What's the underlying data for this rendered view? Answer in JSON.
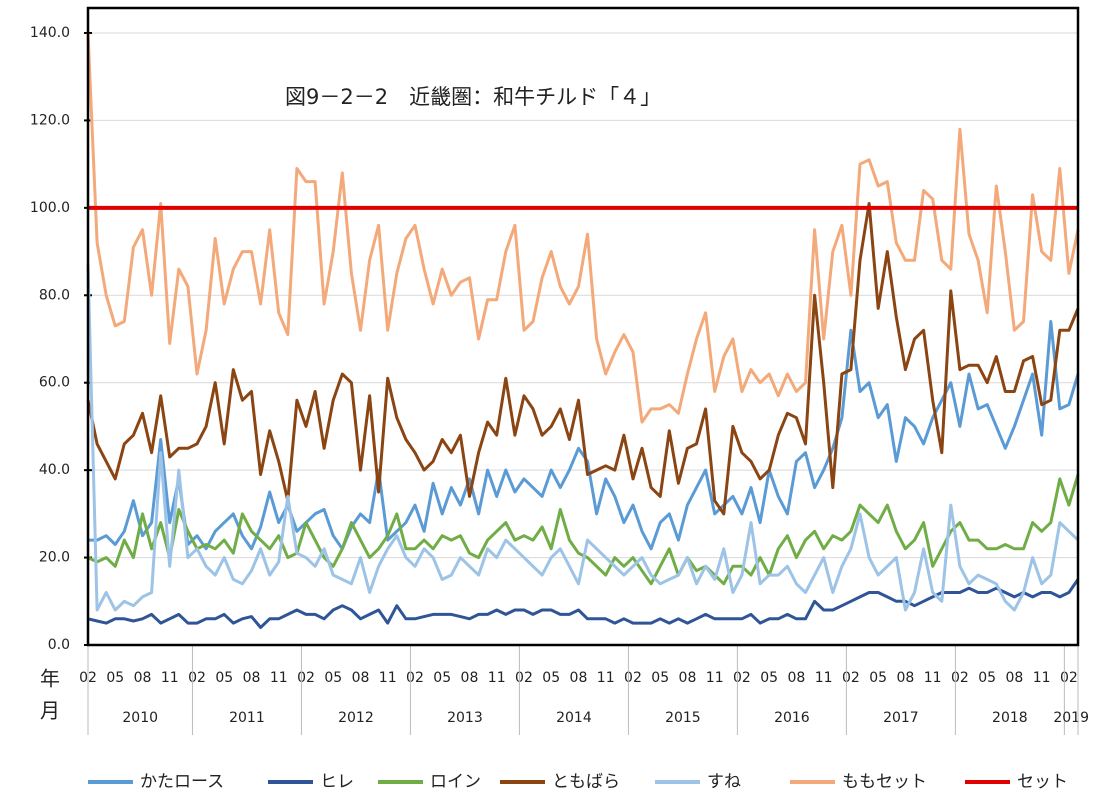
{
  "chart_data": {
    "type": "line",
    "title": "図9－2－2　近畿圏：和牛チルド「４」",
    "x_axis_label_top": "年",
    "x_axis_label_bottom": "月",
    "categories": [
      "02",
      null,
      null,
      "05",
      null,
      null,
      "08",
      null,
      null,
      "11",
      null,
      null,
      "02",
      null,
      null,
      "05",
      null,
      null,
      "08",
      null,
      null,
      "11",
      null,
      null,
      "02",
      null,
      null,
      "05",
      null,
      null,
      "08",
      null,
      null,
      "11",
      null,
      null,
      "02",
      null,
      null,
      "05",
      null,
      null,
      "08",
      null,
      null,
      "11",
      null,
      null,
      "02",
      null,
      null,
      "05",
      null,
      null,
      "08",
      null,
      null,
      "11",
      null,
      null,
      "02",
      null,
      null,
      "05",
      null,
      null,
      "08",
      null,
      null,
      "11",
      null,
      null,
      "02",
      null,
      null,
      "05",
      null,
      null,
      "08",
      null,
      null,
      "11",
      null,
      null,
      "02",
      null,
      null,
      "05",
      null,
      null,
      "08",
      null,
      null,
      "11",
      null,
      null,
      "02",
      null,
      null,
      "05",
      null,
      null,
      "08",
      null,
      null,
      "11",
      null,
      null,
      "02",
      null
    ],
    "years": [
      "2010",
      "2011",
      "2012",
      "2013",
      "2014",
      "2015",
      "2016",
      "2017",
      "2018",
      "2019"
    ],
    "ylim": [
      0,
      140
    ],
    "yticks": [
      {
        "value": 0,
        "label": "0.0"
      },
      {
        "value": 20,
        "label": "20.0"
      },
      {
        "value": 40,
        "label": "40.0"
      },
      {
        "value": 60,
        "label": "60.0"
      },
      {
        "value": 80,
        "label": "80.0"
      },
      {
        "value": 100,
        "label": "100.0"
      },
      {
        "value": 120,
        "label": "120.0"
      },
      {
        "value": 140,
        "label": "140.0"
      }
    ],
    "grid": true,
    "legend": "bottom",
    "series": [
      {
        "name": "かたロース",
        "color": "#5b9bd5",
        "values": [
          24,
          24,
          25,
          23,
          26,
          33,
          25,
          28,
          47,
          28,
          38,
          23,
          25,
          22,
          26,
          28,
          30,
          25,
          22,
          27,
          35,
          28,
          32,
          26,
          28,
          30,
          31,
          25,
          22,
          27,
          30,
          28,
          40,
          24,
          26,
          28,
          32,
          26,
          37,
          30,
          36,
          32,
          38,
          30,
          40,
          34,
          40,
          35,
          38,
          36,
          34,
          40,
          36,
          40,
          45,
          42,
          30,
          38,
          34,
          28,
          32,
          26,
          22,
          28,
          30,
          24,
          32,
          36,
          40,
          30,
          32,
          34,
          30,
          36,
          28,
          40,
          34,
          30,
          42,
          44,
          36,
          40,
          45,
          52,
          72,
          58,
          60,
          52,
          55,
          42,
          52,
          50,
          46,
          52,
          56,
          60,
          50,
          62,
          54,
          55,
          50,
          45,
          50,
          56,
          62,
          48,
          74,
          54,
          55,
          62
        ]
      },
      {
        "name": "ヒレ",
        "color": "#2f5597",
        "values": [
          6,
          5.5,
          5,
          6,
          6,
          5.5,
          6,
          7,
          5,
          6,
          7,
          5,
          5,
          6,
          6,
          7,
          5,
          6,
          6.5,
          4,
          6,
          6,
          7,
          8,
          7,
          7,
          6,
          8,
          9,
          8,
          6,
          7,
          8,
          5,
          9,
          6,
          6,
          6.5,
          7,
          7,
          7,
          6.5,
          6,
          7,
          7,
          8,
          7,
          8,
          8,
          7,
          8,
          8,
          7,
          7,
          8,
          6,
          6,
          6,
          5,
          6,
          5,
          5,
          5,
          6,
          5,
          6,
          5,
          6,
          7,
          6,
          6,
          6,
          6,
          7,
          5,
          6,
          6,
          7,
          6,
          6,
          10,
          8,
          8,
          9,
          10,
          11,
          12,
          12,
          11,
          10,
          10,
          9,
          10,
          11,
          12,
          12,
          12,
          13,
          12,
          12,
          13,
          12,
          11,
          12,
          11,
          12,
          12,
          11,
          12,
          15
        ]
      },
      {
        "name": "ロイン",
        "color": "#70ad47",
        "values": [
          20,
          19,
          20,
          18,
          24,
          20,
          30,
          22,
          28,
          20,
          31,
          26,
          22,
          23,
          22,
          24,
          21,
          30,
          26,
          24,
          22,
          25,
          20,
          21,
          28,
          24,
          20,
          18,
          22,
          28,
          24,
          20,
          22,
          25,
          30,
          22,
          22,
          24,
          22,
          25,
          24,
          25,
          21,
          20,
          24,
          26,
          28,
          24,
          25,
          24,
          27,
          22,
          31,
          24,
          21,
          20,
          18,
          16,
          20,
          18,
          20,
          17,
          14,
          18,
          22,
          16,
          20,
          17,
          18,
          16,
          14,
          18,
          18,
          16,
          20,
          16,
          22,
          25,
          20,
          24,
          26,
          22,
          25,
          24,
          26,
          32,
          30,
          28,
          32,
          26,
          22,
          24,
          28,
          18,
          22,
          26,
          28,
          24,
          24,
          22,
          22,
          23,
          22,
          22,
          28,
          26,
          28,
          38,
          32,
          39
        ]
      },
      {
        "name": "ともばら",
        "color": "#8b4513",
        "values": [
          56,
          46,
          42,
          38,
          46,
          48,
          53,
          44,
          57,
          43,
          45,
          45,
          46,
          50,
          60,
          46,
          63,
          56,
          58,
          39,
          49,
          42,
          33,
          56,
          50,
          58,
          45,
          56,
          62,
          60,
          40,
          57,
          35,
          61,
          52,
          47,
          44,
          40,
          42,
          47,
          44,
          48,
          34,
          44,
          51,
          48,
          61,
          48,
          57,
          54,
          48,
          50,
          54,
          47,
          56,
          39,
          40,
          41,
          40,
          48,
          38,
          45,
          36,
          34,
          49,
          37,
          45,
          46,
          54,
          33,
          30,
          50,
          44,
          42,
          38,
          40,
          48,
          53,
          52,
          46,
          80,
          60,
          36,
          62,
          63,
          88,
          101,
          77,
          90,
          75,
          63,
          70,
          72,
          56,
          44,
          81,
          63,
          64,
          64,
          60,
          66,
          58,
          58,
          65,
          66,
          55,
          56,
          72,
          72,
          77
        ]
      },
      {
        "name": "すね",
        "color": "#9dc3e6",
        "values": [
          87,
          8,
          12,
          8,
          10,
          9,
          11,
          12,
          44,
          18,
          40,
          20,
          22,
          18,
          16,
          20,
          15,
          14,
          17,
          22,
          16,
          19,
          34,
          21,
          20,
          18,
          22,
          16,
          15,
          14,
          20,
          12,
          18,
          22,
          25,
          20,
          18,
          22,
          20,
          15,
          16,
          20,
          18,
          16,
          22,
          20,
          24,
          22,
          20,
          18,
          16,
          20,
          22,
          18,
          14,
          24,
          22,
          20,
          18,
          16,
          18,
          20,
          16,
          14,
          15,
          16,
          20,
          14,
          18,
          15,
          22,
          12,
          16,
          28,
          14,
          16,
          16,
          18,
          14,
          12,
          16,
          20,
          12,
          18,
          22,
          30,
          20,
          16,
          18,
          20,
          8,
          12,
          22,
          12,
          10,
          32,
          18,
          14,
          16,
          15,
          14,
          10,
          8,
          12,
          20,
          14,
          16,
          28,
          26,
          24
        ]
      },
      {
        "name": "ももセット",
        "color": "#f4a97a",
        "values": [
          140,
          92,
          80,
          73,
          74,
          91,
          95,
          80,
          101,
          69,
          86,
          82,
          62,
          72,
          93,
          78,
          86,
          90,
          90,
          78,
          95,
          76,
          71,
          109,
          106,
          106,
          78,
          90,
          108,
          85,
          72,
          88,
          96,
          72,
          85,
          93,
          96,
          86,
          78,
          86,
          80,
          83,
          84,
          70,
          79,
          79,
          90,
          96,
          72,
          74,
          84,
          90,
          82,
          78,
          82,
          94,
          70,
          62,
          67,
          71,
          67,
          51,
          54,
          54,
          55,
          53,
          62,
          70,
          76,
          58,
          66,
          70,
          58,
          63,
          60,
          62,
          57,
          62,
          58,
          60,
          95,
          70,
          90,
          96,
          80,
          110,
          111,
          105,
          106,
          92,
          88,
          88,
          104,
          102,
          88,
          86,
          118,
          94,
          88,
          76,
          105,
          90,
          72,
          74,
          103,
          90,
          88,
          109,
          85,
          95
        ]
      },
      {
        "name": "セット",
        "color": "#e00000",
        "values": [
          100,
          100,
          100,
          100,
          100,
          100,
          100,
          100,
          100,
          100,
          100,
          100,
          100,
          100,
          100,
          100,
          100,
          100,
          100,
          100,
          100,
          100,
          100,
          100,
          100,
          100,
          100,
          100,
          100,
          100,
          100,
          100,
          100,
          100,
          100,
          100,
          100,
          100,
          100,
          100,
          100,
          100,
          100,
          100,
          100,
          100,
          100,
          100,
          100,
          100,
          100,
          100,
          100,
          100,
          100,
          100,
          100,
          100,
          100,
          100,
          100,
          100,
          100,
          100,
          100,
          100,
          100,
          100,
          100,
          100,
          100,
          100,
          100,
          100,
          100,
          100,
          100,
          100,
          100,
          100,
          100,
          100,
          100,
          100,
          100,
          100,
          100,
          100,
          100,
          100,
          100,
          100,
          100,
          100,
          100,
          100,
          100,
          100,
          100,
          100,
          100,
          100,
          100,
          100,
          100,
          100,
          100,
          100,
          100,
          100
        ]
      }
    ]
  }
}
